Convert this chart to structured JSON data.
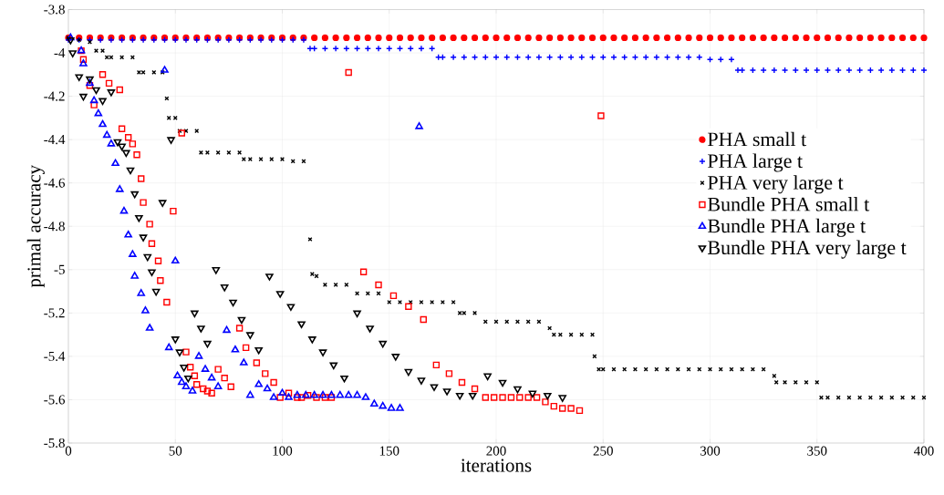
{
  "chart_data": {
    "type": "scatter",
    "xlabel": "iterations",
    "ylabel": "primal accuracy",
    "xlim": [
      0,
      400
    ],
    "ylim": [
      -5.8,
      -3.8
    ],
    "xticks": [
      0,
      50,
      100,
      150,
      200,
      250,
      300,
      350,
      400
    ],
    "yticks": [
      -5.8,
      -5.6,
      -5.4,
      -5.2,
      -5,
      -4.8,
      -4.6,
      -4.4,
      -4.2,
      -4,
      -3.8
    ],
    "grid": true,
    "legend": "right",
    "series": [
      {
        "name": "PHA small t",
        "color": "#ff0000",
        "marker": "circle",
        "x": [
          0,
          5,
          10,
          15,
          20,
          25,
          30,
          35,
          40,
          45,
          50,
          55,
          60,
          65,
          70,
          75,
          80,
          85,
          90,
          95,
          100,
          105,
          110,
          115,
          120,
          125,
          130,
          135,
          140,
          145,
          150,
          155,
          160,
          165,
          170,
          175,
          180,
          185,
          190,
          195,
          200,
          205,
          210,
          215,
          220,
          225,
          230,
          235,
          240,
          245,
          250,
          255,
          260,
          265,
          270,
          275,
          280,
          285,
          290,
          295,
          300,
          305,
          310,
          315,
          320,
          325,
          330,
          335,
          340,
          345,
          350,
          355,
          360,
          365,
          370,
          375,
          380,
          385,
          390,
          395,
          400
        ],
        "values": [
          -3.93,
          -3.93,
          -3.93,
          -3.93,
          -3.93,
          -3.93,
          -3.93,
          -3.93,
          -3.93,
          -3.93,
          -3.93,
          -3.93,
          -3.93,
          -3.93,
          -3.93,
          -3.93,
          -3.93,
          -3.93,
          -3.93,
          -3.93,
          -3.93,
          -3.93,
          -3.93,
          -3.93,
          -3.93,
          -3.93,
          -3.93,
          -3.93,
          -3.93,
          -3.93,
          -3.93,
          -3.93,
          -3.93,
          -3.93,
          -3.93,
          -3.93,
          -3.93,
          -3.93,
          -3.93,
          -3.93,
          -3.93,
          -3.93,
          -3.93,
          -3.93,
          -3.93,
          -3.93,
          -3.93,
          -3.93,
          -3.93,
          -3.93,
          -3.93,
          -3.93,
          -3.93,
          -3.93,
          -3.93,
          -3.93,
          -3.93,
          -3.93,
          -3.93,
          -3.93,
          -3.93,
          -3.93,
          -3.93,
          -3.93,
          -3.93,
          -3.93,
          -3.93,
          -3.93,
          -3.93,
          -3.93,
          -3.93,
          -3.93,
          -3.93,
          -3.93,
          -3.93,
          -3.93,
          -3.93,
          -3.93,
          -3.93,
          -3.93,
          -3.93
        ]
      },
      {
        "name": "PHA large t",
        "color": "#0000ff",
        "marker": "plus",
        "x": [
          0,
          5,
          10,
          15,
          20,
          25,
          30,
          35,
          40,
          45,
          50,
          55,
          60,
          65,
          70,
          75,
          80,
          85,
          90,
          95,
          100,
          105,
          110,
          113,
          115,
          120,
          125,
          130,
          135,
          140,
          145,
          150,
          155,
          160,
          165,
          170,
          173,
          175,
          180,
          185,
          190,
          195,
          200,
          205,
          210,
          215,
          220,
          225,
          230,
          235,
          240,
          245,
          250,
          255,
          260,
          265,
          270,
          275,
          280,
          285,
          290,
          295,
          300,
          305,
          310,
          313,
          315,
          320,
          325,
          330,
          335,
          340,
          345,
          350,
          355,
          360,
          365,
          370,
          375,
          380,
          385,
          390,
          395,
          400
        ],
        "values": [
          -3.94,
          -3.94,
          -3.94,
          -3.94,
          -3.94,
          -3.94,
          -3.94,
          -3.94,
          -3.94,
          -3.94,
          -3.94,
          -3.94,
          -3.94,
          -3.94,
          -3.94,
          -3.94,
          -3.94,
          -3.94,
          -3.94,
          -3.94,
          -3.94,
          -3.94,
          -3.94,
          -3.98,
          -3.98,
          -3.98,
          -3.98,
          -3.98,
          -3.98,
          -3.98,
          -3.98,
          -3.98,
          -3.98,
          -3.98,
          -3.98,
          -3.98,
          -4.02,
          -4.02,
          -4.02,
          -4.02,
          -4.02,
          -4.02,
          -4.02,
          -4.02,
          -4.02,
          -4.02,
          -4.02,
          -4.02,
          -4.02,
          -4.02,
          -4.02,
          -4.02,
          -4.02,
          -4.02,
          -4.02,
          -4.02,
          -4.02,
          -4.02,
          -4.02,
          -4.02,
          -4.02,
          -4.02,
          -4.03,
          -4.03,
          -4.03,
          -4.08,
          -4.08,
          -4.08,
          -4.08,
          -4.08,
          -4.08,
          -4.08,
          -4.08,
          -4.08,
          -4.08,
          -4.08,
          -4.08,
          -4.08,
          -4.08,
          -4.08,
          -4.08,
          -4.08,
          -4.08,
          -4.08
        ]
      },
      {
        "name": "PHA very large t",
        "color": "#000000",
        "marker": "cross",
        "x": [
          0,
          5,
          10,
          13,
          16,
          18,
          20,
          25,
          30,
          33,
          35,
          40,
          44,
          46,
          47,
          50,
          52,
          55,
          60,
          62,
          65,
          70,
          75,
          80,
          82,
          85,
          90,
          95,
          100,
          105,
          110,
          113,
          114,
          116,
          120,
          125,
          130,
          135,
          140,
          145,
          150,
          155,
          160,
          165,
          170,
          175,
          180,
          183,
          185,
          190,
          195,
          200,
          205,
          210,
          215,
          220,
          225,
          227,
          230,
          235,
          240,
          245,
          246,
          248,
          250,
          255,
          260,
          265,
          270,
          275,
          280,
          285,
          290,
          295,
          300,
          305,
          310,
          315,
          320,
          325,
          330,
          331,
          335,
          340,
          345,
          350,
          352,
          355,
          360,
          365,
          370,
          375,
          380,
          385,
          390,
          395,
          400
        ],
        "values": [
          -3.93,
          -3.94,
          -3.95,
          -3.99,
          -3.99,
          -4.02,
          -4.02,
          -4.02,
          -4.02,
          -4.09,
          -4.09,
          -4.09,
          -4.09,
          -4.21,
          -4.3,
          -4.3,
          -4.36,
          -4.36,
          -4.36,
          -4.46,
          -4.46,
          -4.46,
          -4.46,
          -4.46,
          -4.49,
          -4.49,
          -4.49,
          -4.49,
          -4.49,
          -4.5,
          -4.5,
          -4.86,
          -5.02,
          -5.03,
          -5.07,
          -5.07,
          -5.07,
          -5.11,
          -5.11,
          -5.11,
          -5.15,
          -5.15,
          -5.15,
          -5.15,
          -5.15,
          -5.15,
          -5.15,
          -5.2,
          -5.2,
          -5.2,
          -5.24,
          -5.24,
          -5.24,
          -5.24,
          -5.24,
          -5.24,
          -5.27,
          -5.3,
          -5.3,
          -5.3,
          -5.3,
          -5.3,
          -5.4,
          -5.46,
          -5.46,
          -5.46,
          -5.46,
          -5.46,
          -5.46,
          -5.46,
          -5.46,
          -5.46,
          -5.46,
          -5.46,
          -5.46,
          -5.46,
          -5.46,
          -5.46,
          -5.46,
          -5.46,
          -5.49,
          -5.52,
          -5.52,
          -5.52,
          -5.52,
          -5.52,
          -5.59,
          -5.59,
          -5.59,
          -5.59,
          -5.59,
          -5.59,
          -5.59,
          -5.59,
          -5.59,
          -5.59,
          -5.59
        ]
      },
      {
        "name": "Bundle PHA small t",
        "color": "#ff0000",
        "marker": "square",
        "x": [
          6,
          7,
          10,
          12,
          16,
          19,
          24,
          25,
          28,
          30,
          32,
          34,
          35,
          38,
          39,
          42,
          43,
          46,
          49,
          53,
          55,
          57,
          59,
          60,
          63,
          65,
          67,
          70,
          73,
          76,
          80,
          83,
          88,
          92,
          96,
          99,
          103,
          107,
          109,
          112,
          116,
          120,
          123,
          131,
          138,
          145,
          152,
          159,
          166,
          172,
          178,
          184,
          190,
          195,
          199,
          203,
          207,
          211,
          215,
          219,
          223,
          227,
          231,
          235,
          239,
          249
        ],
        "values": [
          -3.99,
          -4.03,
          -4.15,
          -4.24,
          -4.1,
          -4.14,
          -4.17,
          -4.35,
          -4.39,
          -4.42,
          -4.47,
          -4.58,
          -4.69,
          -4.79,
          -4.88,
          -4.96,
          -5.05,
          -5.15,
          -4.73,
          -4.37,
          -5.38,
          -5.45,
          -5.49,
          -5.53,
          -5.55,
          -5.56,
          -5.57,
          -5.46,
          -5.5,
          -5.54,
          -5.27,
          -5.36,
          -5.43,
          -5.48,
          -5.52,
          -5.59,
          -5.57,
          -5.59,
          -5.59,
          -5.58,
          -5.59,
          -5.59,
          -5.59,
          -4.09,
          -5.01,
          -5.07,
          -5.12,
          -5.17,
          -5.23,
          -5.44,
          -5.48,
          -5.52,
          -5.55,
          -5.59,
          -5.59,
          -5.59,
          -5.59,
          -5.59,
          -5.59,
          -5.59,
          -5.61,
          -5.63,
          -5.64,
          -5.64,
          -5.65,
          -4.29
        ]
      },
      {
        "name": "Bundle PHA large t",
        "color": "#0000ff",
        "marker": "triangle",
        "x": [
          1,
          6,
          7,
          10,
          12,
          14,
          16,
          18,
          20,
          22,
          24,
          26,
          28,
          30,
          31,
          34,
          36,
          38,
          45,
          47,
          50,
          51,
          53,
          55,
          58,
          61,
          64,
          67,
          70,
          74,
          78,
          82,
          85,
          89,
          93,
          96,
          100,
          103,
          107,
          111,
          115,
          119,
          123,
          127,
          131,
          135,
          139,
          143,
          147,
          151,
          155,
          164
        ],
        "values": [
          -3.93,
          -3.99,
          -4.05,
          -4.14,
          -4.22,
          -4.28,
          -4.33,
          -4.38,
          -4.42,
          -4.51,
          -4.63,
          -4.73,
          -4.84,
          -4.93,
          -5.03,
          -5.11,
          -5.19,
          -5.27,
          -4.08,
          -5.36,
          -4.96,
          -5.49,
          -5.52,
          -5.54,
          -5.56,
          -5.4,
          -5.46,
          -5.5,
          -5.54,
          -5.28,
          -5.37,
          -5.43,
          -5.58,
          -5.53,
          -5.55,
          -5.59,
          -5.57,
          -5.59,
          -5.58,
          -5.58,
          -5.58,
          -5.58,
          -5.58,
          -5.58,
          -5.58,
          -5.58,
          -5.59,
          -5.62,
          -5.63,
          -5.64,
          -5.64,
          -4.34
        ]
      },
      {
        "name": "Bundle PHA very large t",
        "color": "#000000",
        "marker": "triangle-down",
        "x": [
          1,
          2,
          5,
          7,
          10,
          13,
          16,
          20,
          23,
          25,
          27,
          29,
          31,
          33,
          35,
          37,
          39,
          41,
          44,
          48,
          50,
          52,
          54,
          56,
          59,
          62,
          65,
          69,
          73,
          77,
          81,
          85,
          89,
          94,
          99,
          104,
          109,
          114,
          119,
          124,
          129,
          135,
          141,
          147,
          153,
          159,
          165,
          171,
          177,
          183,
          189,
          196,
          203,
          210,
          217,
          224,
          231
        ],
        "values": [
          -3.94,
          -4,
          -4.11,
          -4.2,
          -4.12,
          -4.17,
          -4.22,
          -4.18,
          -4.41,
          -4.43,
          -4.46,
          -4.54,
          -4.65,
          -4.76,
          -4.85,
          -4.94,
          -5.01,
          -5.1,
          -4.69,
          -4.4,
          -5.32,
          -5.38,
          -5.45,
          -5.5,
          -5.2,
          -5.27,
          -5.34,
          -5,
          -5.08,
          -5.15,
          -5.23,
          -5.3,
          -5.37,
          -5.03,
          -5.11,
          -5.17,
          -5.25,
          -5.32,
          -5.38,
          -5.44,
          -5.5,
          -5.2,
          -5.27,
          -5.34,
          -5.4,
          -5.47,
          -5.51,
          -5.54,
          -5.56,
          -5.58,
          -5.58,
          -5.49,
          -5.52,
          -5.55,
          -5.57,
          -5.58,
          -5.59
        ]
      }
    ]
  }
}
